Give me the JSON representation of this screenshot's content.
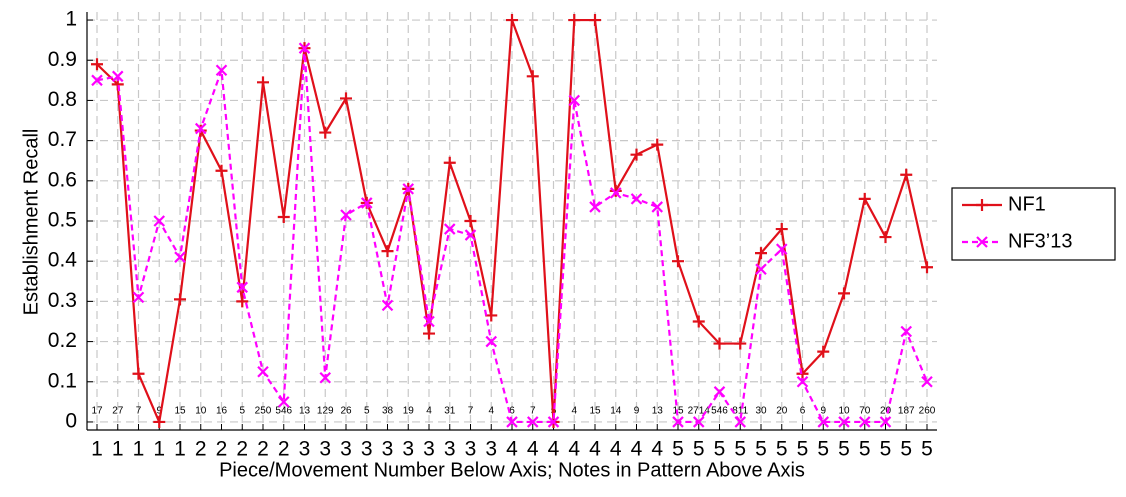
{
  "chart_data": {
    "type": "line",
    "x_label": "Piece/Movement Number Below Axis; Notes in Pattern Above Axis",
    "y_label": "Establishment Recall",
    "categories": [
      "1",
      "1",
      "1",
      "1",
      "1",
      "2",
      "2",
      "2",
      "2",
      "2",
      "3",
      "3",
      "3",
      "3",
      "3",
      "3",
      "3",
      "3",
      "3",
      "3",
      "4",
      "4",
      "4",
      "4",
      "4",
      "4",
      "4",
      "4",
      "5",
      "5",
      "5",
      "5",
      "5",
      "5",
      "5",
      "5",
      "5",
      "5",
      "5",
      "5",
      "5"
    ],
    "note_counts": [
      17,
      27,
      7,
      9,
      15,
      10,
      16,
      5,
      250,
      546,
      13,
      129,
      26,
      5,
      38,
      19,
      4,
      31,
      7,
      4,
      6,
      7,
      5,
      4,
      15,
      14,
      9,
      13,
      15,
      2714,
      546,
      811,
      30,
      20,
      6,
      9,
      10,
      70,
      20,
      187,
      260
    ],
    "series": [
      {
        "name": "NF1",
        "color": "#e0101a",
        "dash": false,
        "marker": "plus",
        "values": [
          0.89,
          0.84,
          0.12,
          0.0,
          0.305,
          0.725,
          0.625,
          0.3,
          0.845,
          0.51,
          0.93,
          0.72,
          0.805,
          0.545,
          0.425,
          0.58,
          0.22,
          0.645,
          0.5,
          0.265,
          1.0,
          0.86,
          0.0,
          1.0,
          1.0,
          0.575,
          0.665,
          0.69,
          0.4,
          0.25,
          0.195,
          0.195,
          0.42,
          0.48,
          0.12,
          0.175,
          0.32,
          0.555,
          0.46,
          0.615,
          0.385
        ]
      },
      {
        "name": "NF3’13",
        "color": "#ff00ff",
        "dash": true,
        "marker": "x",
        "values": [
          0.85,
          0.86,
          0.31,
          0.5,
          0.41,
          0.73,
          0.875,
          0.335,
          0.125,
          0.05,
          0.93,
          0.11,
          0.515,
          0.545,
          0.29,
          0.58,
          0.25,
          0.48,
          0.465,
          0.2,
          0.0,
          0.0,
          0.0,
          0.8,
          0.535,
          0.57,
          0.555,
          0.535,
          0.0,
          0.0,
          0.075,
          0.0,
          0.38,
          0.43,
          0.1,
          0.0,
          0.0,
          0.0,
          0.0,
          0.225,
          0.1
        ]
      }
    ],
    "ylim": [
      -0.02,
      1.02
    ],
    "yticks": [
      0,
      0.1,
      0.2,
      0.3,
      0.4,
      0.5,
      0.6,
      0.7,
      0.8,
      0.9,
      1
    ],
    "grid": true,
    "legend": "right"
  }
}
